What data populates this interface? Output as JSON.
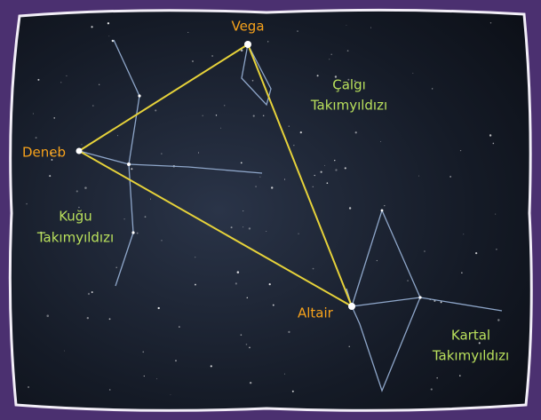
{
  "stars": [
    {
      "label": "Vega"
    },
    {
      "label": "Deneb"
    },
    {
      "label": "Altair"
    }
  ],
  "constellations": [
    {
      "lines": [
        "Çalgı",
        "Takımyıldızı"
      ]
    },
    {
      "lines": [
        "Kuğu",
        "Takımyıldızı"
      ]
    },
    {
      "lines": [
        "Kartal",
        "Takımyıldızı"
      ]
    }
  ]
}
